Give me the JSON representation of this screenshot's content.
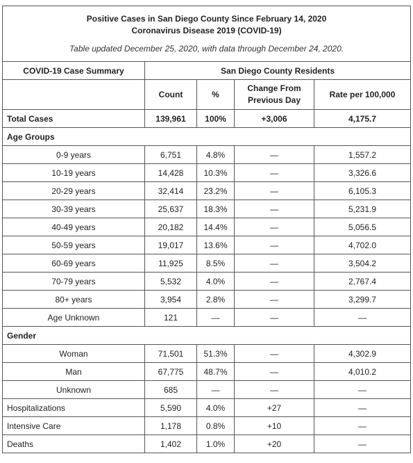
{
  "header": {
    "title": "Positive Cases in San Diego County Since February 14, 2020",
    "subtitle": "Coronavirus Disease 2019 (COVID-19)",
    "note": "Table updated December 25, 2020, with data through December 24, 2020."
  },
  "table": {
    "summary_header": "COVID-19 Case Summary",
    "group_header": "San Diego County Residents",
    "columns": [
      "Count",
      "%",
      "Change From Previous Day",
      "Rate per 100,000"
    ],
    "total": [
      "Total Cases",
      "139,961",
      "100%",
      "+3,006",
      "4,175.7"
    ],
    "groups": [
      {
        "title": "Age Groups",
        "rows": [
          [
            "0-9 years",
            "6,751",
            "4.8%",
            "—",
            "1,557.2"
          ],
          [
            "10-19 years",
            "14,428",
            "10.3%",
            "—",
            "3,326.6"
          ],
          [
            "20-29 years",
            "32,414",
            "23.2%",
            "—",
            "6,105.3"
          ],
          [
            "30-39 years",
            "25,637",
            "18.3%",
            "—",
            "5,231.9"
          ],
          [
            "40-49 years",
            "20,182",
            "14.4%",
            "—",
            "5,056.5"
          ],
          [
            "50-59 years",
            "19,017",
            "13.6%",
            "—",
            "4,702.0"
          ],
          [
            "60-69 years",
            "11,925",
            "8.5%",
            "—",
            "3,504.2"
          ],
          [
            "70-79 years",
            "5,532",
            "4.0%",
            "—",
            "2,767.4"
          ],
          [
            "80+ years",
            "3,954",
            "2.8%",
            "—",
            "3,299.7"
          ],
          [
            "Age Unknown",
            "121",
            "—",
            "—",
            "—"
          ]
        ]
      },
      {
        "title": "Gender",
        "rows": [
          [
            "Woman",
            "71,501",
            "51.3%",
            "—",
            "4,302.9"
          ],
          [
            "Man",
            "67,775",
            "48.7%",
            "—",
            "4,010.2"
          ],
          [
            "Unknown",
            "685",
            "—",
            "—",
            "—"
          ]
        ]
      }
    ],
    "other": [
      [
        "Hospitalizations",
        "5,590",
        "4.0%",
        "+27",
        "—"
      ],
      [
        "Intensive Care",
        "1,178",
        "0.8%",
        "+10",
        "—"
      ],
      [
        "Deaths",
        "1,402",
        "1.0%",
        "+20",
        "—"
      ]
    ]
  }
}
